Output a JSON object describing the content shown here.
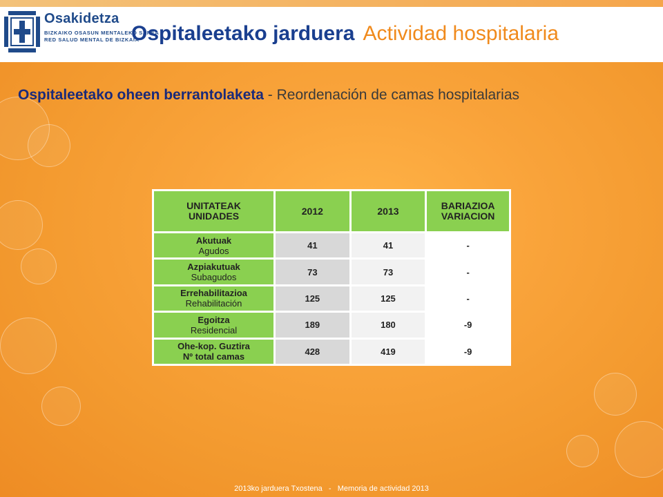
{
  "brand": {
    "name": "Osakidetza",
    "sub_line1": "BIZKAIKO OSASUN MENTALEKO SAREA",
    "sub_line2": "RED SALUD MENTAL DE BIZKAIA"
  },
  "title": {
    "eu": "Ospitaleetako jarduera",
    "es": "Actividad hospitalaria"
  },
  "subtitle": {
    "eu": "Ospitaleetako oheen berrantolaketa",
    "sep": " - ",
    "es": "Reordenación de camas hospitalarias"
  },
  "table": {
    "headers": {
      "unit_line1": "UNITATEAK",
      "unit_line2": "UNIDADES",
      "y2012": "2012",
      "y2013": "2013",
      "var_line1": "BARIAZIOA",
      "var_line2": "VARIACION"
    },
    "rows": [
      {
        "eu": "Akutuak",
        "es": "Agudos",
        "v2012": "41",
        "v2013": "41",
        "var": "-"
      },
      {
        "eu": "Azpiakutuak",
        "es": "Subagudos",
        "v2012": "73",
        "v2013": "73",
        "var": "-"
      },
      {
        "eu": "Errehabilitazioa",
        "es": "Rehabilitación",
        "v2012": "125",
        "v2013": "125",
        "var": "-"
      },
      {
        "eu": "Egoitza",
        "es": "Residencial",
        "v2012": "189",
        "v2013": "180",
        "var": "-9"
      },
      {
        "eu": "Ohe-kop. Guztira",
        "es": "Nº total camas",
        "v2012": "428",
        "v2013": "419",
        "var": "-9"
      }
    ]
  },
  "footer": "2013ko jarduera Txostena   -   Memoria de actividad 2013",
  "colors": {
    "header_green": "#8ad050",
    "title_blue": "#1a3f8f",
    "title_orange": "#f08a1c",
    "background_orange": "#f9a33a"
  }
}
